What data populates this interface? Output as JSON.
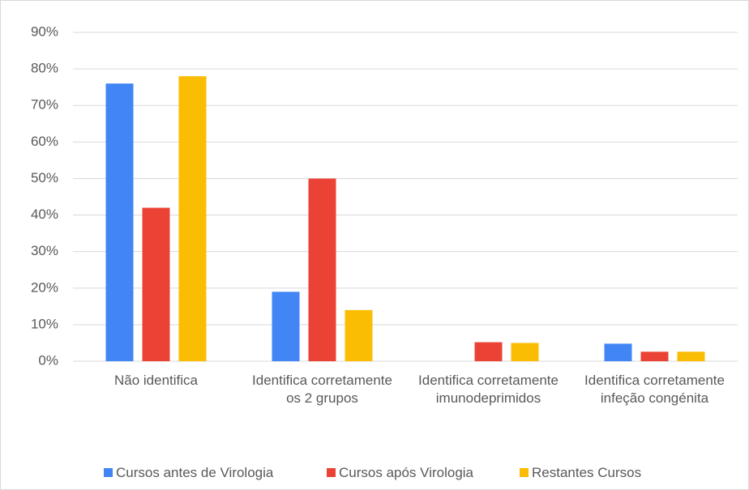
{
  "chart_data": {
    "type": "bar",
    "categories": [
      "Não identifica",
      "Identifica corretamente os 2 grupos",
      "Identifica corretamente imunodeprimidos",
      "Identifica corretamente infeção congénita"
    ],
    "series": [
      {
        "name": "Cursos antes de Virologia",
        "color": "#4285f4",
        "values": [
          76,
          19,
          0,
          4.8
        ]
      },
      {
        "name": "Cursos após Virologia",
        "color": "#ea4335",
        "values": [
          42,
          50,
          5.2,
          2.6
        ]
      },
      {
        "name": "Restantes Cursos",
        "color": "#fbbc04",
        "values": [
          78,
          14,
          5,
          2.6
        ]
      }
    ],
    "ylim": [
      0,
      90
    ],
    "yticks": [
      {
        "value": 0,
        "label": "0%"
      },
      {
        "value": 10,
        "label": "10%"
      },
      {
        "value": 20,
        "label": "20%"
      },
      {
        "value": 30,
        "label": "30%"
      },
      {
        "value": 40,
        "label": "40%"
      },
      {
        "value": 50,
        "label": "50%"
      },
      {
        "value": 60,
        "label": "60%"
      },
      {
        "value": 70,
        "label": "70%"
      },
      {
        "value": 80,
        "label": "80%"
      },
      {
        "value": 90,
        "label": "90%"
      }
    ],
    "grid": true,
    "legend": "bottom"
  }
}
